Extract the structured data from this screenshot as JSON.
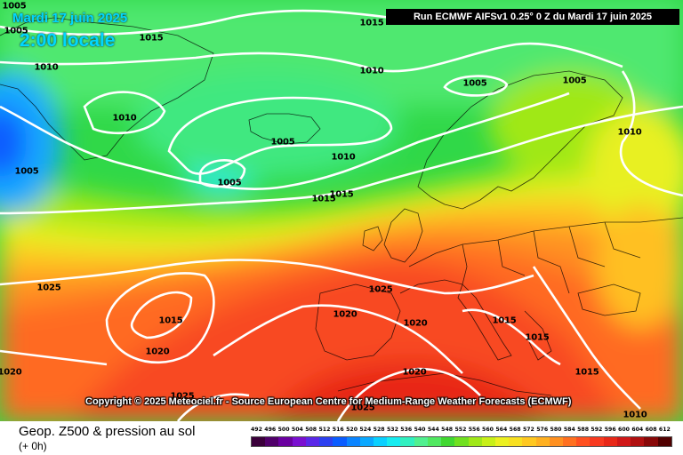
{
  "header": {
    "date_label": "Mardi 17 juin 2025",
    "time_label": "2:00 locale",
    "run_label": "Run ECMWF AIFSv1 0.25° 0 Z du Mardi 17 juin 2025"
  },
  "copyright": "Copyright © 2025 Meteociel.fr - Source European Centre for Medium-Range Weather Forecasts (ECMWF)",
  "footer": {
    "title": "Geop. Z500 & pression au sol",
    "subtitle": "(+ 0h)"
  },
  "legend": {
    "ticks": [
      "492",
      "496",
      "500",
      "504",
      "508",
      "512",
      "516",
      "520",
      "524",
      "528",
      "532",
      "536",
      "540",
      "544",
      "548",
      "552",
      "556",
      "560",
      "564",
      "568",
      "572",
      "576",
      "580",
      "584",
      "588",
      "592",
      "596",
      "600",
      "604",
      "608",
      "612"
    ],
    "colors": [
      "#3a003a",
      "#50006a",
      "#6a00a0",
      "#7a10d0",
      "#5a28e8",
      "#2c40f0",
      "#0a5cff",
      "#0a84ff",
      "#0aa8ff",
      "#0ad0ff",
      "#16ecf0",
      "#30f0c0",
      "#50f090",
      "#50e860",
      "#40d830",
      "#70e020",
      "#a0e818",
      "#c8f018",
      "#ecf020",
      "#f8e020",
      "#ffc820",
      "#ffb020",
      "#ff9020",
      "#ff7020",
      "#ff5020",
      "#f83a20",
      "#e82818",
      "#d01818",
      "#b01010",
      "#880808",
      "#500000"
    ]
  },
  "colors": {
    "isobar": "#ffffff",
    "header_text": "#00d8ff"
  },
  "isobars": [
    {
      "value": "1005",
      "text": "1005"
    },
    {
      "value": "1005",
      "text": "1005"
    },
    {
      "value": "1015",
      "text": "1015"
    },
    {
      "value": "1015",
      "text": "1015"
    },
    {
      "value": "1010",
      "text": "1010"
    },
    {
      "value": "1010",
      "text": "1010"
    },
    {
      "value": "1005",
      "text": "1005"
    },
    {
      "value": "1005",
      "text": "1005"
    },
    {
      "value": "1010",
      "text": "1010"
    },
    {
      "value": "1005",
      "text": "1005"
    },
    {
      "value": "1010",
      "text": "1010"
    },
    {
      "value": "1005",
      "text": "1005"
    },
    {
      "value": "1010",
      "text": "1010"
    },
    {
      "value": "1005",
      "text": "1005"
    },
    {
      "value": "1015",
      "text": "1015"
    },
    {
      "value": "1015",
      "text": "1015"
    },
    {
      "value": "1025",
      "text": "1025"
    },
    {
      "value": "1025",
      "text": "1025"
    },
    {
      "value": "1015",
      "text": "1015"
    },
    {
      "value": "1020",
      "text": "1020"
    },
    {
      "value": "1020",
      "text": "1020"
    },
    {
      "value": "1020",
      "text": "1020"
    },
    {
      "value": "1020",
      "text": "1020"
    },
    {
      "value": "1015",
      "text": "1015"
    },
    {
      "value": "1015",
      "text": "1015"
    },
    {
      "value": "1025",
      "text": "1025"
    },
    {
      "value": "1020",
      "text": "1020"
    },
    {
      "value": "1025",
      "text": "1025"
    },
    {
      "value": "1015",
      "text": "1015"
    },
    {
      "value": "1010",
      "text": "1010"
    }
  ]
}
